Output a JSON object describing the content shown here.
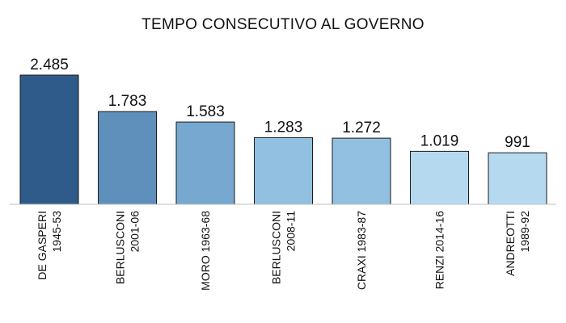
{
  "chart_data": {
    "type": "bar",
    "title": "TEMPO CONSECUTIVO AL GOVERNO",
    "categories": [
      [
        "DE GASPERI",
        "1945-53"
      ],
      [
        "BERLUSCONI",
        "2001-06"
      ],
      [
        "MORO 1963-68"
      ],
      [
        "BERLUSCONI",
        "2008-11"
      ],
      [
        "CRAXI 1983-87"
      ],
      [
        "RENZI 2014-16"
      ],
      [
        "ANDREOTTI",
        "1989-92"
      ]
    ],
    "values": [
      2485,
      1783,
      1583,
      1283,
      1272,
      1019,
      991
    ],
    "value_labels": [
      "2.485",
      "1.783",
      "1.583",
      "1.283",
      "1.272",
      "1.019",
      "991"
    ],
    "bar_colors": [
      "#2e5b8a",
      "#5f8fbb",
      "#77a8d0",
      "#92c0e1",
      "#92c0e1",
      "#b5daf0",
      "#b5daf0"
    ],
    "bar_stroke": "#1a1a1a",
    "axis_color": "#bfbfbf",
    "ylim": [
      0,
      2485
    ],
    "xlabel": "",
    "ylabel": "",
    "grid": false,
    "legend": false
  }
}
